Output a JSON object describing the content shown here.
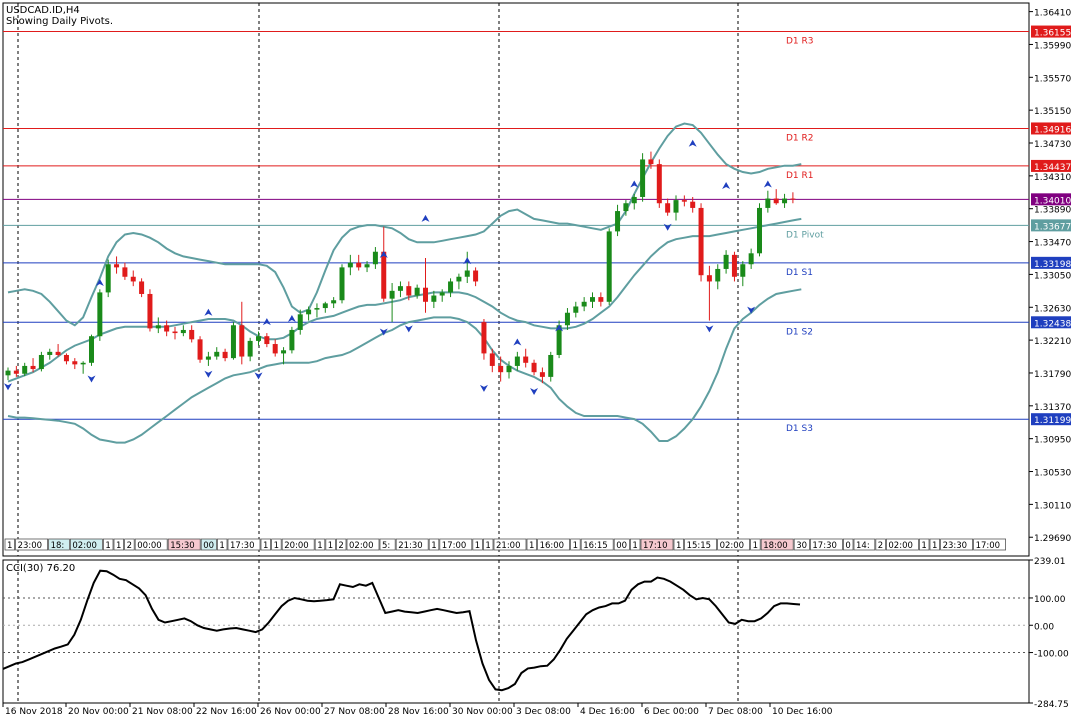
{
  "header": {
    "symbol_line": "USDCAD.ID,H4",
    "pivots_note": "Showing Daily Pivots."
  },
  "colors": {
    "bull": "#1a8a1a",
    "bear": "#e01b1b",
    "band": "#5f9ea0",
    "red_line": "#e01b1b",
    "blue_line": "#1f3fbf",
    "pivot_line": "#5f9ea0",
    "last_price": "#800080",
    "fractal": "#1f3fbf"
  },
  "chart_data": [
    {
      "type": "candlestick",
      "title": "USDCAD.ID,H4",
      "subtitle": "Showing Daily Pivots.",
      "y_ticks": [
        "1.36410",
        "1.35990",
        "1.35570",
        "1.35150",
        "1.34730",
        "1.34310",
        "1.33890",
        "1.33470",
        "1.33050",
        "1.32630",
        "1.32210",
        "1.31790",
        "1.31370",
        "1.30950",
        "1.30530",
        "1.30110",
        "1.29690"
      ],
      "ylim": [
        1.2945,
        1.3652
      ],
      "pivot_levels": [
        {
          "name": "D1 R3",
          "value": 1.36155,
          "label": "1.36155",
          "color": "red"
        },
        {
          "name": "D1 R2",
          "value": 1.34916,
          "label": "1.34916",
          "color": "red"
        },
        {
          "name": "D1 R1",
          "value": 1.34437,
          "label": "1.34437",
          "color": "red"
        },
        {
          "name": "D1 Pivot",
          "value": 1.33677,
          "label": "1.33677",
          "color": "pivot"
        },
        {
          "name": "D1 S1",
          "value": 1.33198,
          "label": "1.33198",
          "color": "blue"
        },
        {
          "name": "D1 S2",
          "value": 1.32438,
          "label": "1.32438",
          "color": "blue"
        },
        {
          "name": "D1 S3",
          "value": 1.31199,
          "label": "1.31199",
          "color": "blue"
        }
      ],
      "last_price": {
        "value": 1.3401,
        "label": "1.34010"
      },
      "x_tick_labels": [
        "16 Nov 2018",
        "20 Nov 00:00",
        "21 Nov 08:00",
        "22 Nov 16:00",
        "26 Nov 00:00",
        "27 Nov 08:00",
        "28 Nov 16:00",
        "30 Nov 00:00",
        "3 Dec 08:00",
        "4 Dec 16:00",
        "6 Dec 00:00",
        "7 Dec 08:00",
        "10 Dec 16:00"
      ],
      "session_labels": [
        "1",
        "23:00",
        "18:",
        "02:00",
        "1",
        "1",
        "2",
        "00:00",
        "15:30",
        "00",
        "1",
        "17:30",
        "1",
        "1",
        "20:00",
        "1",
        "1",
        "2",
        "02:00",
        "5:",
        "21:30",
        "1",
        "17:00",
        "1",
        "1",
        "21:00",
        "1",
        "16:00",
        "1",
        "16:15",
        "00",
        "1",
        "17:10",
        "1",
        "15:15",
        "02:00",
        "1",
        "18:00",
        "30",
        "17:30",
        "0",
        "14:",
        "2",
        "02:00",
        "1",
        "1",
        "23:30",
        "17:00",
        "15:30",
        "22:30"
      ],
      "candles": [
        [
          1.3176,
          1.3186,
          1.317,
          1.3182
        ],
        [
          1.3182,
          1.3188,
          1.3174,
          1.3178
        ],
        [
          1.3178,
          1.3192,
          1.3175,
          1.3188
        ],
        [
          1.3188,
          1.3198,
          1.318,
          1.3184
        ],
        [
          1.3184,
          1.3206,
          1.3181,
          1.3202
        ],
        [
          1.3202,
          1.321,
          1.3196,
          1.3206
        ],
        [
          1.3206,
          1.3216,
          1.32,
          1.3202
        ],
        [
          1.3202,
          1.3204,
          1.319,
          1.3194
        ],
        [
          1.3194,
          1.3198,
          1.3184,
          1.319
        ],
        [
          1.319,
          1.3194,
          1.3178,
          1.3192
        ],
        [
          1.3192,
          1.3228,
          1.3188,
          1.3226
        ],
        [
          1.3226,
          1.3286,
          1.322,
          1.3282
        ],
        [
          1.3282,
          1.3324,
          1.3276,
          1.3318
        ],
        [
          1.3318,
          1.3328,
          1.3306,
          1.3314
        ],
        [
          1.3314,
          1.332,
          1.3298,
          1.3302
        ],
        [
          1.3302,
          1.331,
          1.329,
          1.3296
        ],
        [
          1.3296,
          1.33,
          1.3276,
          1.328
        ],
        [
          1.328,
          1.3286,
          1.3232,
          1.3236
        ],
        [
          1.3236,
          1.325,
          1.323,
          1.324
        ],
        [
          1.324,
          1.3246,
          1.3226,
          1.3232
        ],
        [
          1.3232,
          1.3238,
          1.3222,
          1.323
        ],
        [
          1.323,
          1.324,
          1.3226,
          1.3234
        ],
        [
          1.3234,
          1.324,
          1.3218,
          1.3222
        ],
        [
          1.3222,
          1.3226,
          1.3192,
          1.3196
        ],
        [
          1.3196,
          1.3206,
          1.3188,
          1.32
        ],
        [
          1.32,
          1.3212,
          1.3196,
          1.3206
        ],
        [
          1.3206,
          1.321,
          1.3194,
          1.3198
        ],
        [
          1.3198,
          1.3244,
          1.3196,
          1.324
        ],
        [
          1.324,
          1.327,
          1.319,
          1.32
        ],
        [
          1.32,
          1.3224,
          1.3194,
          1.322
        ],
        [
          1.322,
          1.3232,
          1.3214,
          1.3226
        ],
        [
          1.3226,
          1.323,
          1.3212,
          1.3216
        ],
        [
          1.3216,
          1.3222,
          1.32,
          1.3204
        ],
        [
          1.3204,
          1.3212,
          1.319,
          1.3208
        ],
        [
          1.3208,
          1.3238,
          1.3204,
          1.3234
        ],
        [
          1.3234,
          1.326,
          1.3228,
          1.3254
        ],
        [
          1.3254,
          1.3264,
          1.3246,
          1.326
        ],
        [
          1.326,
          1.3268,
          1.325,
          1.3262
        ],
        [
          1.3262,
          1.327,
          1.3256,
          1.3268
        ],
        [
          1.3268,
          1.3276,
          1.3262,
          1.3272
        ],
        [
          1.3272,
          1.3318,
          1.3268,
          1.3314
        ],
        [
          1.3314,
          1.333,
          1.3304,
          1.332
        ],
        [
          1.332,
          1.333,
          1.331,
          1.3314
        ],
        [
          1.3314,
          1.3322,
          1.3308,
          1.3318
        ],
        [
          1.3318,
          1.334,
          1.3312,
          1.3334
        ],
        [
          1.3334,
          1.3366,
          1.327,
          1.3274
        ],
        [
          1.3274,
          1.3294,
          1.3244,
          1.3284
        ],
        [
          1.3284,
          1.3296,
          1.3276,
          1.329
        ],
        [
          1.329,
          1.3296,
          1.3272,
          1.3278
        ],
        [
          1.3278,
          1.3292,
          1.3274,
          1.3288
        ],
        [
          1.3288,
          1.3326,
          1.3256,
          1.327
        ],
        [
          1.327,
          1.3284,
          1.3262,
          1.3278
        ],
        [
          1.3278,
          1.3286,
          1.327,
          1.3282
        ],
        [
          1.3282,
          1.33,
          1.3276,
          1.3296
        ],
        [
          1.3296,
          1.3306,
          1.3286,
          1.3302
        ],
        [
          1.3302,
          1.3334,
          1.3294,
          1.331
        ],
        [
          1.331,
          1.3314,
          1.329,
          1.3296
        ],
        [
          1.3244,
          1.3248,
          1.3196,
          1.3204
        ],
        [
          1.3204,
          1.321,
          1.318,
          1.3188
        ],
        [
          1.3188,
          1.32,
          1.3168,
          1.318
        ],
        [
          1.318,
          1.3194,
          1.3172,
          1.3188
        ],
        [
          1.3188,
          1.3206,
          1.3182,
          1.32
        ],
        [
          1.32,
          1.321,
          1.3186,
          1.3192
        ],
        [
          1.3192,
          1.3196,
          1.3176,
          1.318
        ],
        [
          1.318,
          1.3186,
          1.3166,
          1.3174
        ],
        [
          1.3174,
          1.3206,
          1.3168,
          1.3202
        ],
        [
          1.3202,
          1.3246,
          1.3198,
          1.324
        ],
        [
          1.324,
          1.3262,
          1.3234,
          1.3256
        ],
        [
          1.3256,
          1.327,
          1.325,
          1.3264
        ],
        [
          1.3264,
          1.3276,
          1.3258,
          1.327
        ],
        [
          1.327,
          1.3282,
          1.3262,
          1.3276
        ],
        [
          1.3276,
          1.3282,
          1.3264,
          1.327
        ],
        [
          1.327,
          1.3364,
          1.3266,
          1.336
        ],
        [
          1.336,
          1.3394,
          1.3354,
          1.3386
        ],
        [
          1.3386,
          1.34,
          1.338,
          1.3396
        ],
        [
          1.3396,
          1.3408,
          1.3388,
          1.3404
        ],
        [
          1.3404,
          1.346,
          1.3398,
          1.3452
        ],
        [
          1.3452,
          1.3462,
          1.344,
          1.3446
        ],
        [
          1.3446,
          1.3452,
          1.339,
          1.3396
        ],
        [
          1.3396,
          1.3402,
          1.338,
          1.3384
        ],
        [
          1.3384,
          1.3406,
          1.3374,
          1.34
        ],
        [
          1.34,
          1.3406,
          1.3392,
          1.3398
        ],
        [
          1.3398,
          1.3404,
          1.3384,
          1.339
        ],
        [
          1.339,
          1.3396,
          1.3296,
          1.3304
        ],
        [
          1.3304,
          1.3316,
          1.3246,
          1.3296
        ],
        [
          1.3296,
          1.3318,
          1.3286,
          1.3312
        ],
        [
          1.3312,
          1.3336,
          1.3306,
          1.333
        ],
        [
          1.333,
          1.3334,
          1.3296,
          1.3302
        ],
        [
          1.3302,
          1.3322,
          1.329,
          1.3318
        ],
        [
          1.3318,
          1.3338,
          1.3312,
          1.3332
        ],
        [
          1.3332,
          1.3396,
          1.3328,
          1.339
        ],
        [
          1.339,
          1.3412,
          1.3384,
          1.3402
        ],
        [
          1.3402,
          1.3414,
          1.3394,
          1.3396
        ],
        [
          1.3396,
          1.3408,
          1.339,
          1.3402
        ],
        [
          1.3402,
          1.341,
          1.3396,
          1.3401
        ]
      ],
      "bollinger_upper": [
        1.3282,
        1.3284,
        1.3286,
        1.3284,
        1.328,
        1.327,
        1.3258,
        1.3246,
        1.324,
        1.325,
        1.3276,
        1.33,
        1.3328,
        1.3346,
        1.3356,
        1.3358,
        1.3356,
        1.3352,
        1.3346,
        1.3338,
        1.3332,
        1.3328,
        1.3326,
        1.3324,
        1.3322,
        1.332,
        1.3318,
        1.3318,
        1.3318,
        1.3318,
        1.3318,
        1.3316,
        1.3308,
        1.3288,
        1.3264,
        1.3256,
        1.326,
        1.3282,
        1.331,
        1.3336,
        1.3352,
        1.3362,
        1.3366,
        1.3368,
        1.3368,
        1.3366,
        1.3364,
        1.3358,
        1.335,
        1.3346,
        1.3346,
        1.3346,
        1.3348,
        1.335,
        1.3352,
        1.3354,
        1.3356,
        1.336,
        1.337,
        1.338,
        1.3386,
        1.3388,
        1.3382,
        1.3376,
        1.3374,
        1.3372,
        1.337,
        1.337,
        1.3368,
        1.3366,
        1.3364,
        1.3362,
        1.3366,
        1.337,
        1.3386,
        1.3408,
        1.3428,
        1.3448,
        1.3466,
        1.3482,
        1.3494,
        1.3498,
        1.3496,
        1.3486,
        1.3472,
        1.3458,
        1.3446,
        1.344,
        1.3436,
        1.3434,
        1.3436,
        1.344,
        1.3442,
        1.3444,
        1.3444,
        1.3446
      ],
      "bollinger_middle": [
        1.3168,
        1.3172,
        1.3176,
        1.318,
        1.3186,
        1.3192,
        1.32,
        1.3208,
        1.3214,
        1.3218,
        1.3222,
        1.3228,
        1.3232,
        1.3236,
        1.3238,
        1.3238,
        1.3238,
        1.3238,
        1.3238,
        1.3238,
        1.324,
        1.3242,
        1.3244,
        1.3246,
        1.3248,
        1.3248,
        1.3248,
        1.3246,
        1.324,
        1.3232,
        1.3226,
        1.3222,
        1.3222,
        1.3224,
        1.323,
        1.3238,
        1.3244,
        1.3248,
        1.325,
        1.3252,
        1.3256,
        1.326,
        1.3264,
        1.3266,
        1.3266,
        1.3268,
        1.327,
        1.3272,
        1.3276,
        1.3278,
        1.328,
        1.3282,
        1.3282,
        1.3282,
        1.3282,
        1.328,
        1.3276,
        1.327,
        1.3264,
        1.3256,
        1.325,
        1.3246,
        1.3244,
        1.324,
        1.3238,
        1.3236,
        1.3236,
        1.3236,
        1.3238,
        1.3242,
        1.3248,
        1.3256,
        1.3264,
        1.3276,
        1.329,
        1.3304,
        1.3316,
        1.3328,
        1.3338,
        1.3346,
        1.335,
        1.3352,
        1.3354,
        1.3354,
        1.3354,
        1.3356,
        1.3358,
        1.336,
        1.3362,
        1.3364,
        1.3366,
        1.3368,
        1.337,
        1.3372,
        1.3374,
        1.3376
      ],
      "bollinger_lower": [
        1.3124,
        1.3122,
        1.3122,
        1.3121,
        1.312,
        1.3119,
        1.3118,
        1.3116,
        1.3114,
        1.3108,
        1.31,
        1.3094,
        1.3092,
        1.309,
        1.309,
        1.3094,
        1.31,
        1.3108,
        1.3116,
        1.3124,
        1.3132,
        1.314,
        1.3148,
        1.3154,
        1.316,
        1.3166,
        1.3172,
        1.3176,
        1.3178,
        1.318,
        1.3184,
        1.3188,
        1.319,
        1.3192,
        1.3192,
        1.3192,
        1.3192,
        1.3194,
        1.3198,
        1.32,
        1.3202,
        1.3206,
        1.3212,
        1.3218,
        1.3224,
        1.323,
        1.3234,
        1.324,
        1.3244,
        1.3246,
        1.3248,
        1.325,
        1.325,
        1.325,
        1.3248,
        1.3244,
        1.3236,
        1.3224,
        1.3208,
        1.3196,
        1.3188,
        1.3182,
        1.3178,
        1.3174,
        1.3168,
        1.316,
        1.3146,
        1.3136,
        1.3128,
        1.3124,
        1.3124,
        1.3124,
        1.3124,
        1.3124,
        1.3122,
        1.312,
        1.3114,
        1.3104,
        1.3092,
        1.3092,
        1.3098,
        1.3108,
        1.312,
        1.3136,
        1.3156,
        1.318,
        1.321,
        1.3236,
        1.3248,
        1.3256,
        1.3266,
        1.3274,
        1.328,
        1.3282,
        1.3284,
        1.3286
      ],
      "fractals_up": [
        [
          11,
          1.3294
        ],
        [
          24,
          1.3256
        ],
        [
          31,
          1.3244
        ],
        [
          34,
          1.3248
        ],
        [
          45,
          1.333
        ],
        [
          50,
          1.3376
        ],
        [
          55,
          1.3322
        ],
        [
          61,
          1.3218
        ],
        [
          66,
          1.3236
        ],
        [
          75,
          1.342
        ],
        [
          82,
          1.3472
        ],
        [
          86,
          1.3418
        ],
        [
          91,
          1.342
        ]
      ],
      "fractals_down": [
        [
          0,
          1.3162
        ],
        [
          10,
          1.3172
        ],
        [
          24,
          1.3178
        ],
        [
          30,
          1.3176
        ],
        [
          45,
          1.3232
        ],
        [
          48,
          1.3236
        ],
        [
          57,
          1.316
        ],
        [
          63,
          1.3156
        ],
        [
          79,
          1.3366
        ],
        [
          84,
          1.3236
        ],
        [
          89,
          1.326
        ]
      ]
    },
    {
      "type": "line",
      "title": "CCI(30) 76.20",
      "y_ticks": [
        "239.01",
        "100.00",
        "0.00",
        "-100.00",
        "-284.75"
      ],
      "ylim": [
        -284.75,
        239.01
      ],
      "levels": [
        100,
        0,
        -100
      ],
      "values": [
        -160,
        -150,
        -140,
        -135,
        -125,
        -115,
        -105,
        -95,
        -85,
        -78,
        -70,
        -35,
        20,
        90,
        155,
        200,
        198,
        185,
        170,
        165,
        150,
        135,
        110,
        60,
        20,
        10,
        15,
        20,
        25,
        15,
        0,
        -10,
        -15,
        -20,
        -15,
        -12,
        -10,
        -15,
        -20,
        -25,
        -15,
        10,
        40,
        70,
        90,
        100,
        95,
        90,
        88,
        90,
        92,
        95,
        150,
        145,
        140,
        150,
        145,
        155,
        100,
        45,
        50,
        55,
        50,
        48,
        45,
        50,
        55,
        60,
        55,
        50,
        45,
        48,
        52,
        -55,
        -140,
        -200,
        -235,
        -238,
        -230,
        -215,
        -175,
        -158,
        -155,
        -150,
        -148,
        -125,
        -90,
        -50,
        -20,
        10,
        40,
        55,
        65,
        70,
        80,
        80,
        90,
        130,
        150,
        160,
        160,
        175,
        170,
        160,
        145,
        130,
        110,
        95,
        100,
        95,
        70,
        40,
        10,
        5,
        20,
        15,
        15,
        25,
        45,
        70,
        80,
        80,
        78,
        76
      ]
    }
  ]
}
